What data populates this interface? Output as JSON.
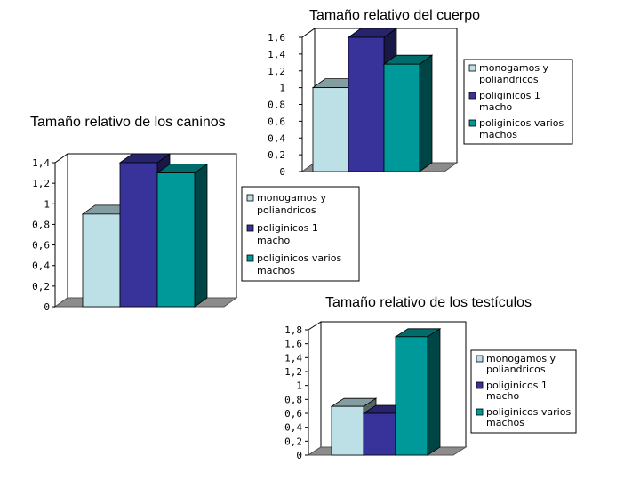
{
  "colors": {
    "monogamos": "#bde0e6",
    "poliginicos_1": "#38339a",
    "poliginicos_varios": "#009999",
    "floor": "#8c8c8c",
    "wall": "#ffffff"
  },
  "legend_lines": [
    [
      "monogamos y",
      "poliandricos"
    ],
    [
      "poliginicos 1",
      "macho"
    ],
    [
      "poliginicos varios",
      "machos"
    ]
  ],
  "chart_data": [
    {
      "type": "bar",
      "title": "Tamaño relativo del cuerpo",
      "categories": [
        "monogamos y poliandricos",
        "poliginicos 1 macho",
        "poliginicos varios machos"
      ],
      "values": [
        1.0,
        1.6,
        1.28
      ],
      "ylim": [
        0,
        1.6
      ],
      "yticks": [
        "0",
        "0,2",
        "0,4",
        "0,6",
        "0,8",
        "1",
        "1,2",
        "1,4",
        "1,6"
      ],
      "legend_position": "right"
    },
    {
      "type": "bar",
      "title": "Tamaño relativo de los caninos",
      "categories": [
        "monogamos y poliandricos",
        "poliginicos 1 macho",
        "poliginicos varios machos"
      ],
      "values": [
        0.9,
        1.4,
        1.3
      ],
      "ylim": [
        0,
        1.4
      ],
      "yticks": [
        "0",
        "0,2",
        "0,4",
        "0,6",
        "0,8",
        "1",
        "1,2",
        "1,4"
      ],
      "legend_position": "right"
    },
    {
      "type": "bar",
      "title": "Tamaño relativo de los testículos",
      "categories": [
        "monogamos y poliandricos",
        "poliginicos 1 macho",
        "poliginicos varios machos"
      ],
      "values": [
        0.7,
        0.6,
        1.7
      ],
      "ylim": [
        0,
        1.8
      ],
      "yticks": [
        "0",
        "0,2",
        "0,4",
        "0,6",
        "0,8",
        "1",
        "1,2",
        "1,4",
        "1,6",
        "1,8"
      ],
      "legend_position": "right"
    }
  ]
}
